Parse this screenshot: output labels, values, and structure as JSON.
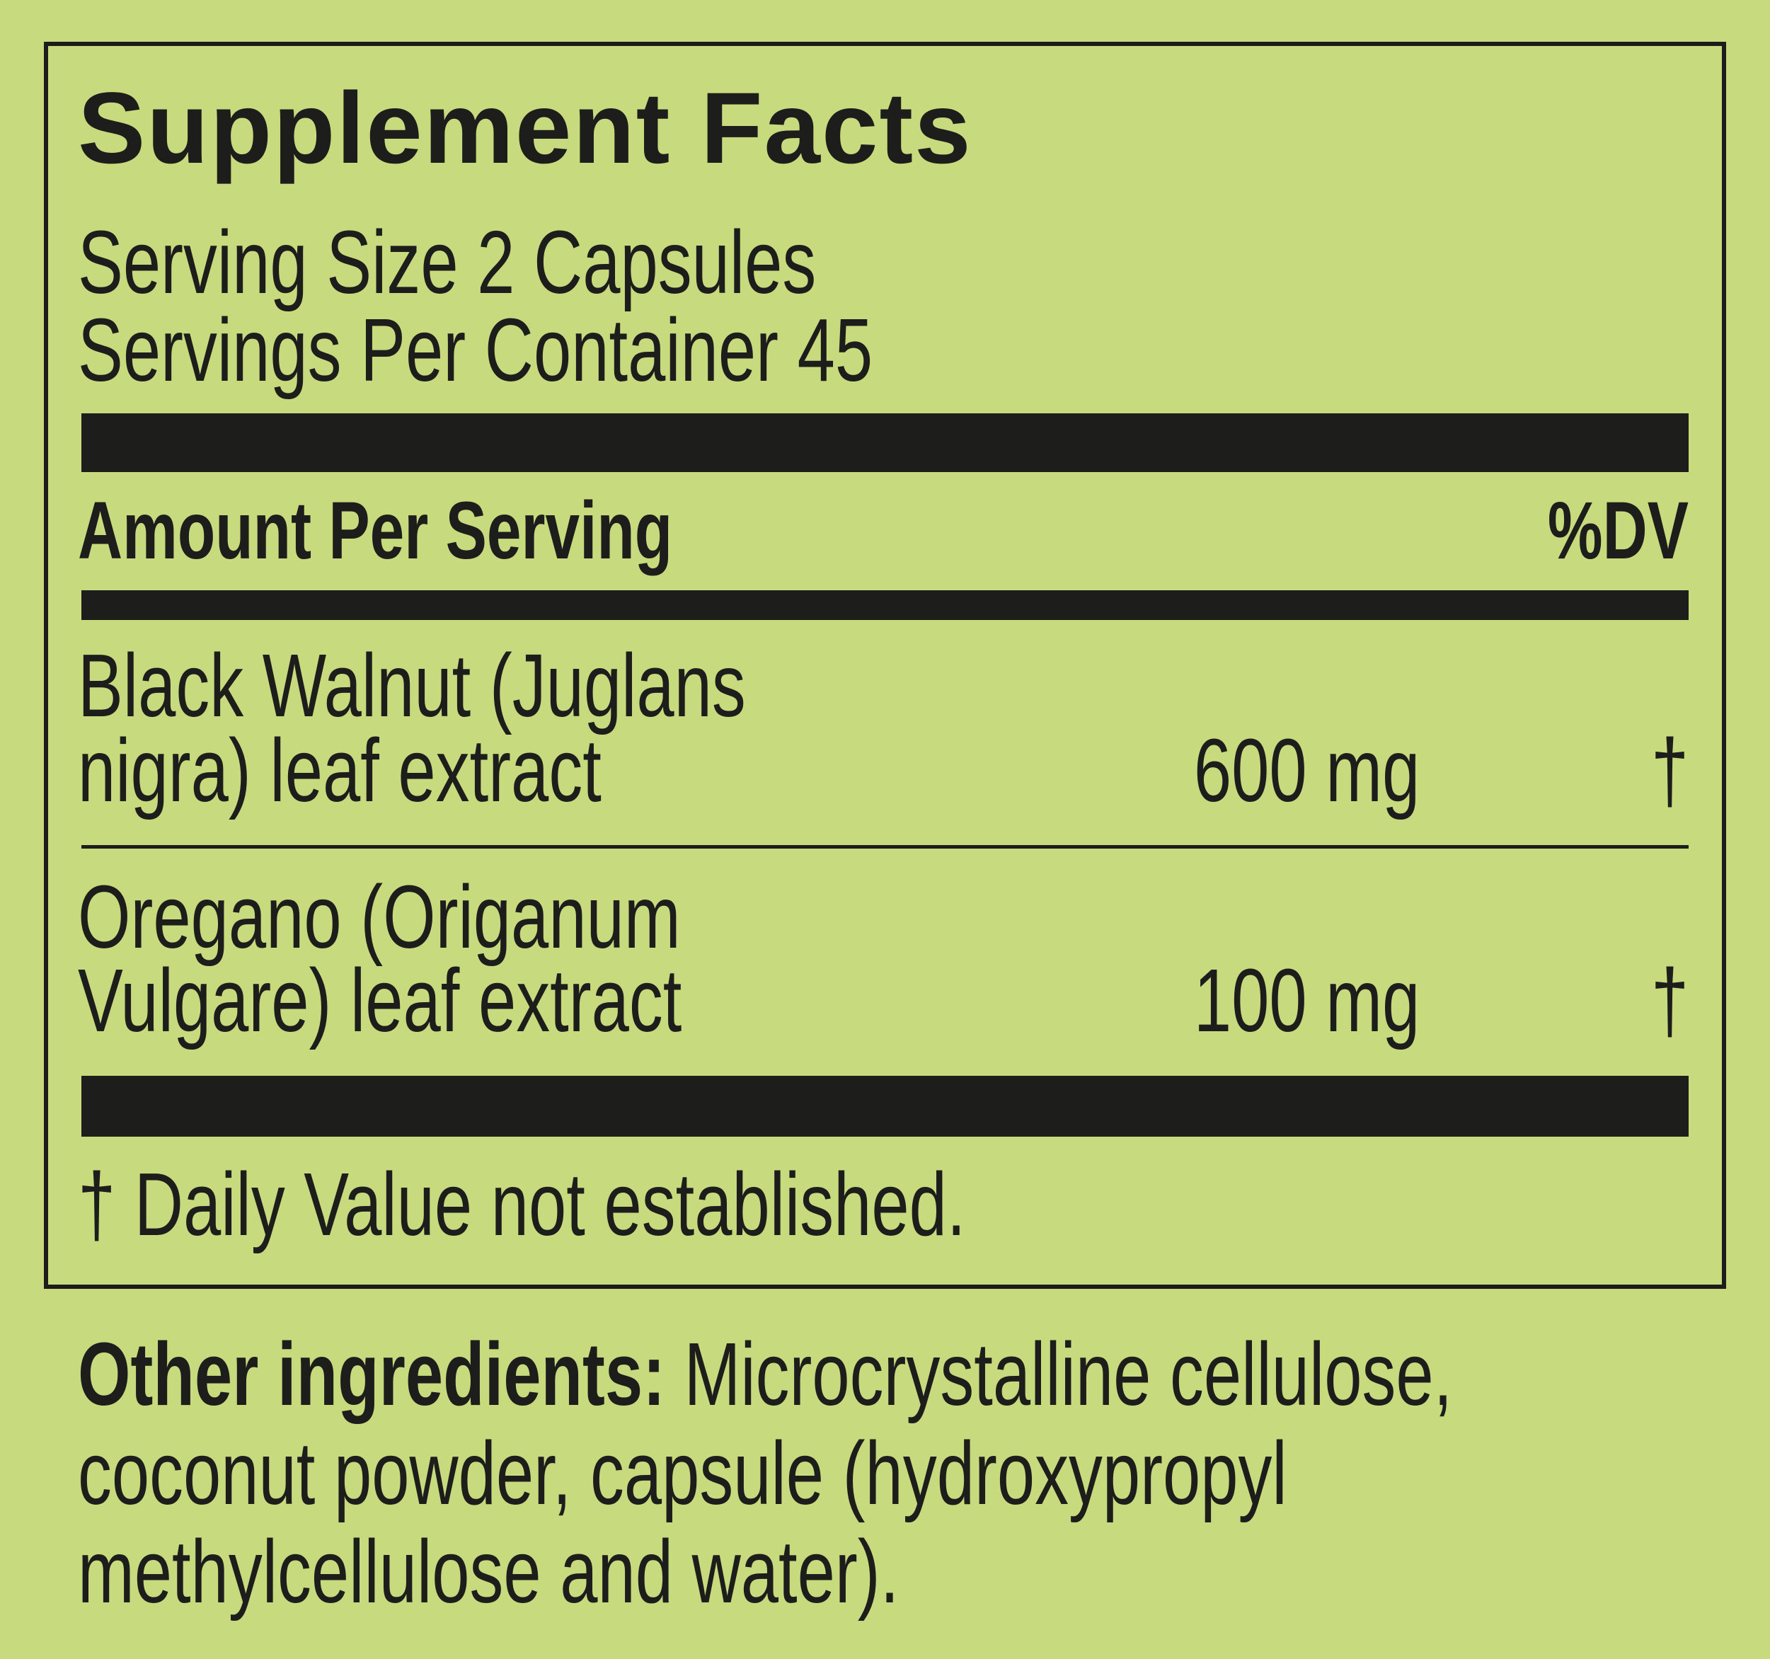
{
  "label": {
    "title": "Supplement Facts",
    "serving_size": "Serving Size 2 Capsules",
    "servings_per_container": "Servings Per Container 45",
    "header_amount": "Amount Per Serving",
    "header_dv": "%DV",
    "ingredients": [
      {
        "name_line1": "Black Walnut (Juglans",
        "name_line2": "nigra) leaf extract",
        "amount": "600 mg",
        "dv": "†"
      },
      {
        "name_line1": "Oregano (Origanum",
        "name_line2": "Vulgare) leaf extract",
        "amount": "100 mg",
        "dv": "†"
      }
    ],
    "footnote": "† Daily Value not established."
  },
  "other_ingredients": {
    "label": "Other ingredients:",
    "lines": [
      "Microcrystalline cellulose,",
      "coconut powder, capsule (hydroxypropyl",
      "methylcellulose and water)."
    ]
  },
  "colors": {
    "background": "#c7da7e",
    "ink": "#1d1d1b"
  }
}
